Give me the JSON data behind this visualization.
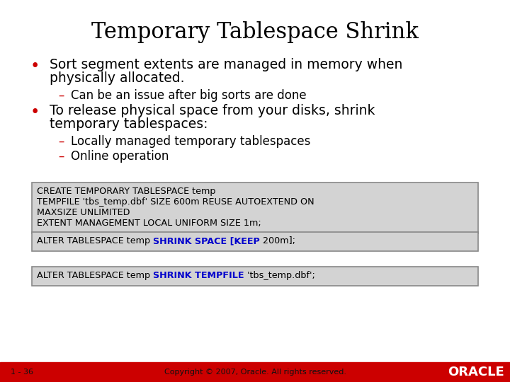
{
  "title": "Temporary Tablespace Shrink",
  "title_fontsize": 22,
  "bg_color": "#ffffff",
  "bullet_color": "#cc0000",
  "text_color": "#000000",
  "sub_color": "#cc0000",
  "code_bg": "#d3d3d3",
  "code_border": "#888888",
  "code_highlight_color": "#0000cc",
  "footer_bg": "#cc0000",
  "footer_text": "Copyright © 2007, Oracle. All rights reserved.",
  "slide_number": "1 - 36",
  "oracle_text": "ORACLE",
  "bullets": [
    {
      "text": "Sort segment extents are managed in memory when\nphysically allocated.",
      "indent": 0
    },
    {
      "text": "Can be an issue after big sorts are done",
      "indent": 1
    },
    {
      "text": "To release physical space from your disks, shrink\ntemporary tablespaces:",
      "indent": 0
    },
    {
      "text": "Locally managed temporary tablespaces",
      "indent": 1
    },
    {
      "text": "Online operation",
      "indent": 1
    }
  ],
  "code_blocks": [
    {
      "lines": [
        [
          {
            "text": "CREATE TEMPORARY TABLESPACE temp",
            "color": "#000000"
          }
        ],
        [
          {
            "text": "TEMPFILE 'tbs_temp.dbf' SIZE 600m REUSE AUTOEXTEND ON",
            "color": "#000000"
          }
        ],
        [
          {
            "text": "MAXSIZE UNLIMITED",
            "color": "#000000"
          }
        ],
        [
          {
            "text": "EXTENT MANAGEMENT LOCAL UNIFORM SIZE 1m;",
            "color": "#000000"
          }
        ]
      ]
    },
    {
      "lines": [
        [
          {
            "text": "ALTER TABLESPACE temp ",
            "color": "#000000"
          },
          {
            "text": "SHRINK SPACE [KEEP",
            "color": "#0000cc"
          },
          {
            "text": " 200m];",
            "color": "#000000"
          }
        ]
      ]
    },
    {
      "lines": [
        [
          {
            "text": "ALTER TABLESPACE temp ",
            "color": "#000000"
          },
          {
            "text": "SHRINK TEMPFILE",
            "color": "#0000cc"
          },
          {
            "text": " 'tbs_temp.dbf';",
            "color": "#000000"
          }
        ]
      ]
    }
  ]
}
